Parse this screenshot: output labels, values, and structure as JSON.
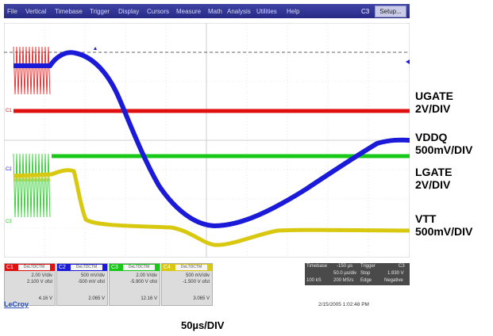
{
  "menu": [
    "File",
    "Vertical",
    "Timebase",
    "Trigger",
    "Display",
    "Cursors",
    "Measure",
    "Math",
    "Analysis",
    "Utilities",
    "Help"
  ],
  "trigger_source": "C3",
  "setup_button": "Setup...",
  "labels": {
    "ugate": [
      "UGATE",
      "2V/DIV"
    ],
    "vddq": [
      "VDDQ",
      "500mV/DIV"
    ],
    "lgate": [
      "LGATE",
      "2V/DIV"
    ],
    "vtt": [
      "VTT",
      "500mV/DIV"
    ]
  },
  "trace_markers": {
    "c1": "C1",
    "c2": "C2",
    "c3": "C3",
    "c4": "C4"
  },
  "channels": [
    {
      "id": "C1",
      "tag": "DeLTDCTM",
      "vdiv": "2.00 V/div",
      "offset": "2.100 V ofst",
      "meas": "4.16 V",
      "color": "#e01010"
    },
    {
      "id": "C2",
      "tag": "DeLTDCTM",
      "vdiv": "500 mV/div",
      "offset": "-500 mV ofst",
      "meas": "2.065 V",
      "color": "#1a1ad8"
    },
    {
      "id": "C3",
      "tag": "DeLTDCTM",
      "vdiv": "2.00 V/div",
      "offset": "-5.900 V ofst",
      "meas": "12.16 V",
      "color": "#18c818"
    },
    {
      "id": "C4",
      "tag": "DeLTDCTM",
      "vdiv": "500 mV/div",
      "offset": "-1.500 V ofst",
      "meas": "3.065 V",
      "color": "#d8c810"
    }
  ],
  "timebase": {
    "title": "Timebase",
    "delay": "-150 µs",
    "tdiv": "50.0 µs/div",
    "samples": "100 kS",
    "rate": "200 MS/s"
  },
  "trigger": {
    "title": "Trigger",
    "channel": "C3",
    "mode": "Stop",
    "level": "1.930 V",
    "type": "Edge",
    "slope": "Negative"
  },
  "brand": "LeCroy",
  "datetime": "2/15/2005 1:02:48 PM",
  "time_per_div": "50µs/DIV",
  "colors": {
    "c1": "#e01010",
    "c2": "#1a1ad8",
    "c3": "#18c818",
    "c4": "#d8c810",
    "menubar": "#2f3396"
  }
}
